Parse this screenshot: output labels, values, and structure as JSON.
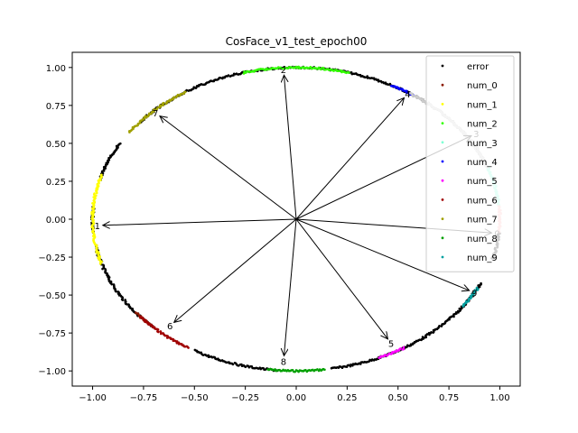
{
  "chart_data": {
    "type": "scatter",
    "title": "CosFace_v1_test_epoch00",
    "xlabel": "",
    "ylabel": "",
    "xlim": [
      -1.1,
      1.1
    ],
    "ylim": [
      -1.1,
      1.1
    ],
    "xticks": [
      -1.0,
      -0.75,
      -0.5,
      -0.25,
      0.0,
      0.25,
      0.5,
      0.75,
      1.0
    ],
    "yticks": [
      -1.0,
      -0.75,
      -0.5,
      -0.25,
      0.0,
      0.25,
      0.5,
      0.75,
      1.0
    ],
    "tick_labels_x": [
      "−1.00",
      "−0.75",
      "−0.50",
      "−0.25",
      "0.00",
      "0.25",
      "0.50",
      "0.75",
      "1.00"
    ],
    "tick_labels_y": [
      "−1.00",
      "−0.75",
      "−0.50",
      "−0.25",
      "0.00",
      "0.25",
      "0.50",
      "0.75",
      "1.00"
    ],
    "grid": false,
    "legend_position": "top-right",
    "series": [
      {
        "name": "error",
        "color": "#000000",
        "arcs_deg": [
          [
            20,
            140
          ],
          [
            150,
            165
          ],
          [
            175,
            185
          ],
          [
            190,
            225
          ],
          [
            240,
            265
          ],
          [
            280,
            335
          ],
          [
            345,
            355
          ]
        ]
      },
      {
        "name": "num_0",
        "color": "#8b1a00",
        "arcs_deg": [
          [
            218,
            224
          ]
        ]
      },
      {
        "name": "num_1",
        "color": "#ffff00",
        "arcs_deg": [
          [
            163,
            197
          ]
        ]
      },
      {
        "name": "num_2",
        "color": "#33ff00",
        "arcs_deg": [
          [
            75,
            105
          ]
        ]
      },
      {
        "name": "num_3",
        "color": "#7fffd4",
        "arcs_deg": [
          [
            5,
            20
          ]
        ]
      },
      {
        "name": "num_4",
        "color": "#0000ff",
        "arcs_deg": [
          [
            55,
            62
          ]
        ]
      },
      {
        "name": "num_5",
        "color": "#ff00ff",
        "arcs_deg": [
          [
            294,
            302
          ]
        ]
      },
      {
        "name": "num_6",
        "color": "#a00000",
        "arcs_deg": [
          [
            220,
            238
          ]
        ]
      },
      {
        "name": "num_7",
        "color": "#a0a000",
        "arcs_deg": [
          [
            123,
            145
          ]
        ]
      },
      {
        "name": "num_8",
        "color": "#00a000",
        "arcs_deg": [
          [
            262,
            278
          ]
        ]
      },
      {
        "name": "num_9",
        "color": "#00a0a0",
        "arcs_deg": [
          [
            325,
            333
          ]
        ]
      }
    ],
    "overlays": [
      {
        "color": "#cccccc",
        "arcs_deg": [
          [
            20,
            56
          ]
        ]
      },
      {
        "color": "#ffb0b0",
        "arcs_deg": [
          [
            355,
            360
          ],
          [
            0,
            5
          ]
        ]
      }
    ],
    "class_vectors": [
      {
        "label": "1",
        "x": -0.95,
        "y": -0.04
      },
      {
        "label": "2",
        "x": -0.06,
        "y": 0.95
      },
      {
        "label": "3",
        "x": 0.86,
        "y": 0.55
      },
      {
        "label": "4",
        "x": 0.53,
        "y": 0.8
      },
      {
        "label": "5",
        "x": 0.45,
        "y": -0.79
      },
      {
        "label": "6",
        "x": -0.6,
        "y": -0.68
      },
      {
        "label": "7",
        "x": -0.67,
        "y": 0.68
      },
      {
        "label": "8",
        "x": -0.06,
        "y": -0.9
      },
      {
        "label": "9",
        "x": 0.85,
        "y": -0.47
      },
      {
        "label": "0",
        "x": 0.96,
        "y": -0.09
      }
    ]
  }
}
